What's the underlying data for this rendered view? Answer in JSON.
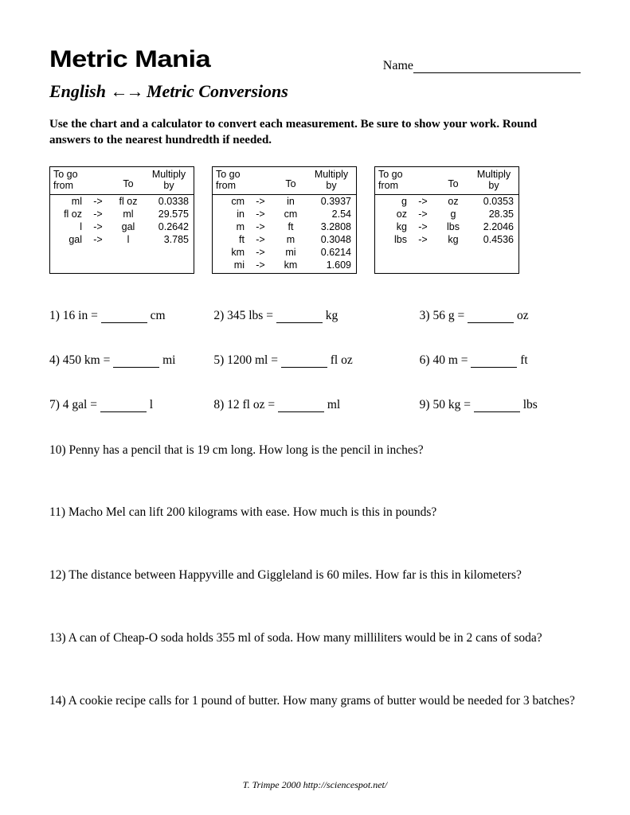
{
  "header": {
    "logo": "Metric Mania",
    "name_label": "Name",
    "subtitle_left": "English",
    "arrows": "←→",
    "subtitle_right": "Metric Conversions"
  },
  "instructions": "Use the chart and a calculator to convert each measurement. Be sure to show your work. Round answers to the nearest hundredth if needed.",
  "charts": {
    "head_from": "To go from",
    "head_to": "To",
    "head_mult": "Multiply by",
    "tables": [
      {
        "rows": [
          {
            "from": "ml",
            "to": "fl oz",
            "mult": "0.0338"
          },
          {
            "from": "fl oz",
            "to": "ml",
            "mult": "29.575"
          },
          {
            "from": "l",
            "to": "gal",
            "mult": "0.2642"
          },
          {
            "from": "gal",
            "to": "l",
            "mult": "3.785"
          }
        ]
      },
      {
        "rows": [
          {
            "from": "cm",
            "to": "in",
            "mult": "0.3937"
          },
          {
            "from": "in",
            "to": "cm",
            "mult": "2.54"
          },
          {
            "from": "m",
            "to": "ft",
            "mult": "3.2808"
          },
          {
            "from": "ft",
            "to": "m",
            "mult": "0.3048"
          },
          {
            "from": "km",
            "to": "mi",
            "mult": "0.6214"
          },
          {
            "from": "mi",
            "to": "km",
            "mult": "1.609"
          }
        ]
      },
      {
        "rows": [
          {
            "from": "g",
            "to": "oz",
            "mult": "0.0353"
          },
          {
            "from": "oz",
            "to": "g",
            "mult": "28.35"
          },
          {
            "from": "kg",
            "to": "lbs",
            "mult": "2.2046"
          },
          {
            "from": "lbs",
            "to": "kg",
            "mult": "0.4536"
          }
        ]
      }
    ]
  },
  "short_problems": [
    {
      "n": "1)",
      "lhs": "16 in =",
      "unit": "cm"
    },
    {
      "n": "2)",
      "lhs": "345 lbs =",
      "unit": "kg"
    },
    {
      "n": "3)",
      "lhs": "56 g =",
      "unit": "oz"
    },
    {
      "n": "4)",
      "lhs": "450 km =",
      "unit": "mi"
    },
    {
      "n": "5)",
      "lhs": "1200 ml =",
      "unit": "fl oz"
    },
    {
      "n": "6)",
      "lhs": "40 m =",
      "unit": "ft"
    },
    {
      "n": "7)",
      "lhs": "4 gal =",
      "unit": "l"
    },
    {
      "n": "8)",
      "lhs": "12 fl oz =",
      "unit": "ml"
    },
    {
      "n": "9)",
      "lhs": "50 kg =",
      "unit": "lbs"
    }
  ],
  "word_problems": [
    "10) Penny has a pencil that is 19 cm long. How long is the pencil in inches?",
    "11) Macho Mel can lift 200 kilograms with ease. How much is this in pounds?",
    "12) The distance between Happyville and Giggleland is 60 miles. How far is this in kilometers?",
    "13) A can of Cheap-O soda holds 355 ml of soda. How many milliliters would be in 2 cans of soda?",
    "14) A cookie recipe calls for 1 pound of butter. How many grams of butter would be needed for 3 batches?"
  ],
  "footer": "T. Trimpe 2000 http://sciencespot.net/"
}
